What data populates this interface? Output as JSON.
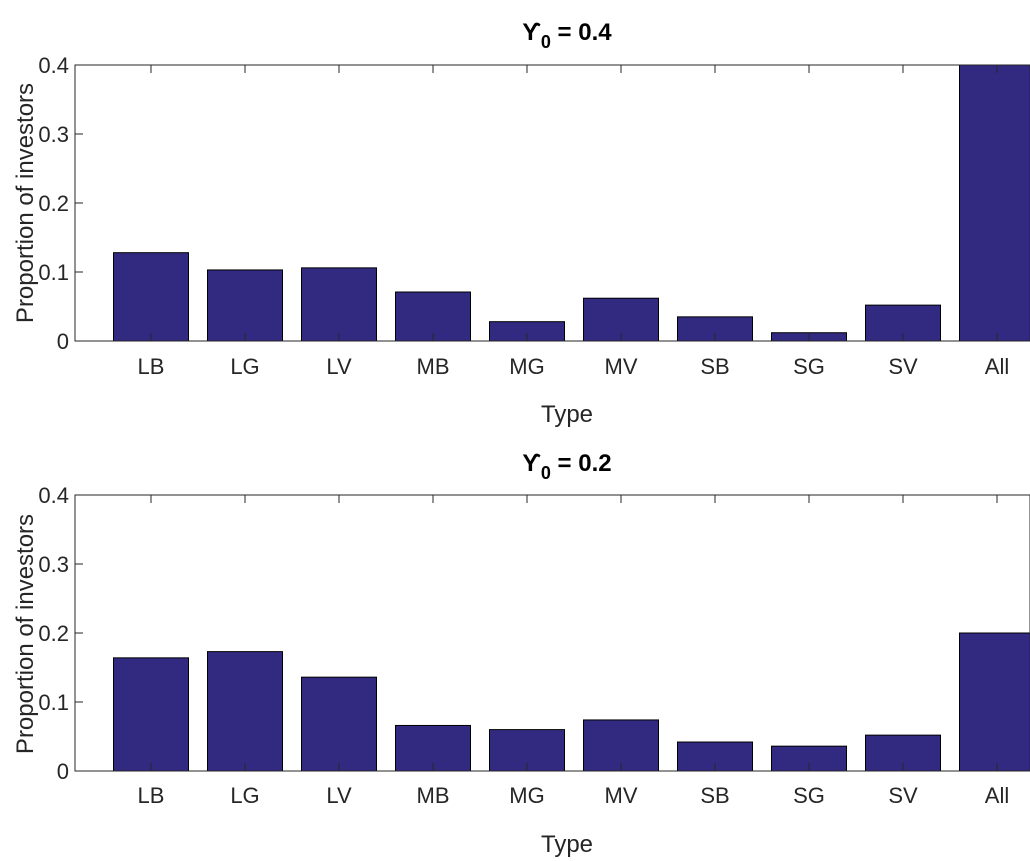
{
  "chart_data": [
    {
      "type": "bar",
      "title": "ϒ",
      "title_subscript": "0",
      "title_suffix": " = 0.4",
      "xlabel": "Type",
      "ylabel": "Proportion of investors",
      "categories": [
        "LB",
        "LG",
        "LV",
        "MB",
        "MG",
        "MV",
        "SB",
        "SG",
        "SV",
        "All"
      ],
      "values": [
        0.128,
        0.103,
        0.106,
        0.071,
        0.028,
        0.062,
        0.035,
        0.012,
        0.052,
        0.4
      ],
      "ylim": [
        0,
        0.4
      ],
      "yticks": [
        "0",
        "0.1",
        "0.2",
        "0.3",
        "0.4"
      ],
      "grid": false,
      "bar_color": "#312a80"
    },
    {
      "type": "bar",
      "title": "ϒ",
      "title_subscript": "0",
      "title_suffix": " = 0.2",
      "xlabel": "Type",
      "ylabel": "Proportion of investors",
      "categories": [
        "LB",
        "LG",
        "LV",
        "MB",
        "MG",
        "MV",
        "SB",
        "SG",
        "SV",
        "All"
      ],
      "values": [
        0.164,
        0.173,
        0.136,
        0.066,
        0.06,
        0.074,
        0.042,
        0.036,
        0.052,
        0.2
      ],
      "ylim": [
        0,
        0.4
      ],
      "yticks": [
        "0",
        "0.1",
        "0.2",
        "0.3",
        "0.4"
      ],
      "grid": false,
      "bar_color": "#312a80"
    }
  ]
}
